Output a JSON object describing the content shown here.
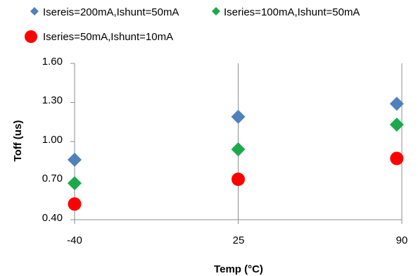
{
  "chart_data": {
    "type": "scatter",
    "title": "",
    "xlabel": "Temp (°C)",
    "ylabel": "Toff (us)",
    "x_ticks": [
      "-40",
      "25",
      "90"
    ],
    "y_ticks": [
      "0.40",
      "0.70",
      "1.00",
      "1.30",
      "1.60"
    ],
    "xlim": [
      -40,
      90
    ],
    "ylim": [
      0.4,
      1.6
    ],
    "grid": "vertical",
    "legend_position": "top",
    "series": [
      {
        "name": "Isereis=200mA,Ishunt=50mA",
        "marker": "diamond",
        "color": "#4F81BD",
        "points": [
          {
            "x": -40,
            "y": 0.86
          },
          {
            "x": 25,
            "y": 1.19
          },
          {
            "x": 88,
            "y": 1.29
          }
        ]
      },
      {
        "name": "Iseries=100mA,Ishunt=50mA",
        "marker": "diamond",
        "color": "#1BAA4B",
        "points": [
          {
            "x": -40,
            "y": 0.68
          },
          {
            "x": 25,
            "y": 0.94
          },
          {
            "x": 88,
            "y": 1.13
          }
        ]
      },
      {
        "name": "Iseries=50mA,Ishunt=10mA",
        "marker": "circle",
        "color": "#FF0000",
        "points": [
          {
            "x": -40,
            "y": 0.52
          },
          {
            "x": 25,
            "y": 0.71
          },
          {
            "x": 88,
            "y": 0.87
          }
        ]
      }
    ]
  }
}
